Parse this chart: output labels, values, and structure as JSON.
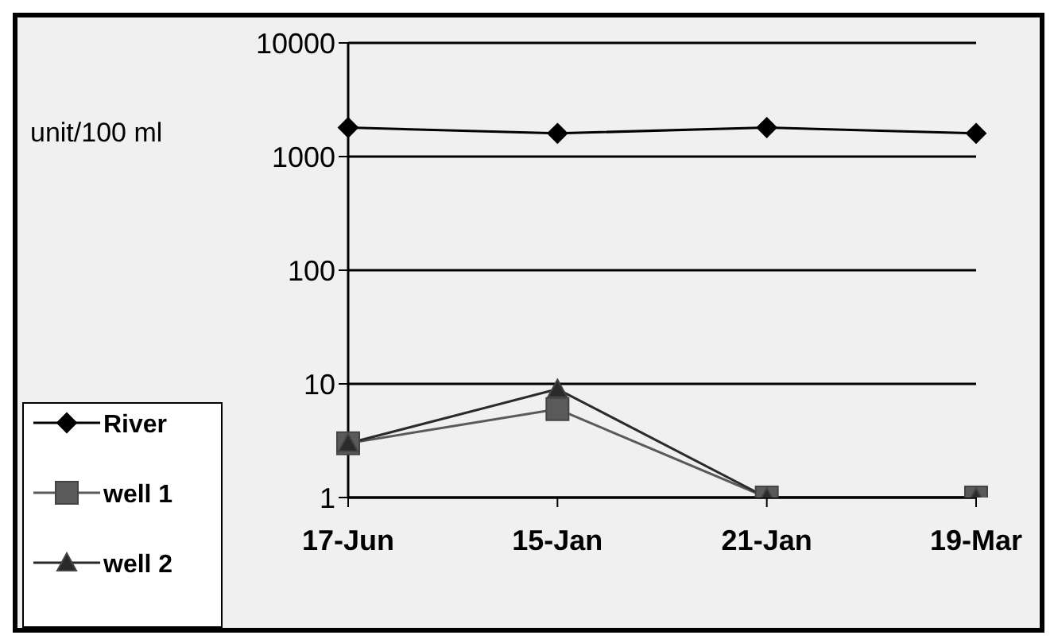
{
  "chart_data": {
    "type": "line",
    "ylabel": "unit/100 ml",
    "categories": [
      "17-Jun",
      "15-Jan",
      "21-Jan",
      "19-Mar"
    ],
    "series": [
      {
        "name": "River",
        "color": "#000000",
        "marker": "diamond",
        "values": [
          1800,
          1600,
          1800,
          1600
        ]
      },
      {
        "name": "well 1",
        "color": "#5a5a5a",
        "marker": "square",
        "values": [
          3,
          6,
          1,
          1
        ]
      },
      {
        "name": "well 2",
        "color": "#2a2a2a",
        "marker": "triangle",
        "values": [
          3,
          9,
          1,
          1
        ]
      }
    ],
    "log": "y",
    "ylim": [
      1,
      10000
    ],
    "yticks": [
      1,
      10,
      100,
      1000,
      10000
    ],
    "grid": "y",
    "legend": "bottom left"
  }
}
